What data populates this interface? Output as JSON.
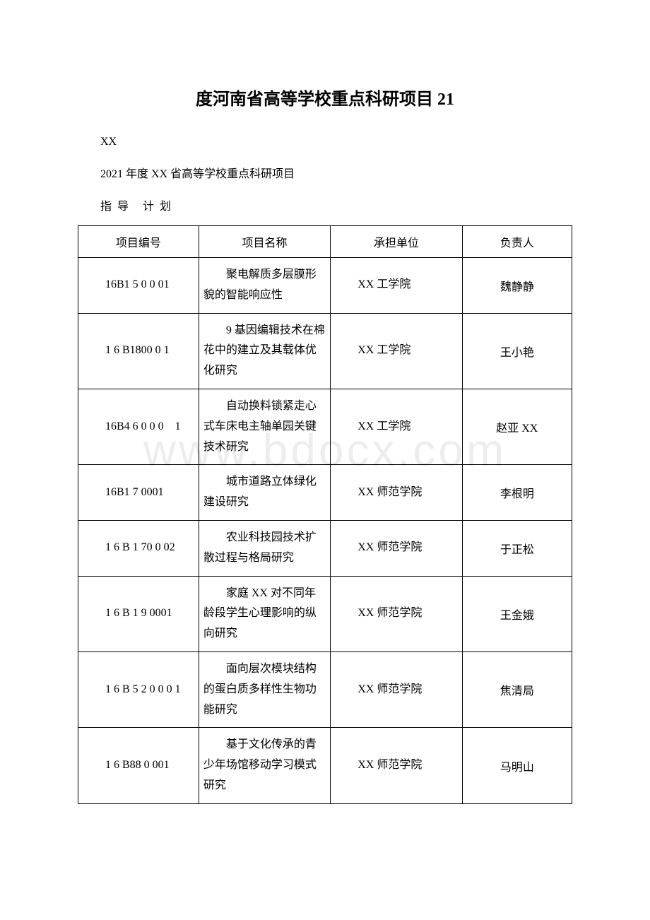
{
  "title": "度河南省高等学校重点科研项目 21",
  "preamble": {
    "line1": "XX",
    "line2": "2021 年度 XX 省高等学校重点科研项目",
    "line3": "指 导　计 划"
  },
  "watermark": "www.bdocx.com",
  "table": {
    "columns": [
      "项目编号",
      "项目名称",
      "承担单位",
      "负责人"
    ],
    "rows": [
      {
        "code": "16B1 5 0 0 01",
        "name": "聚电解质多层膜形貌的智能响应性",
        "unit": "XX 工学院",
        "leader": "魏静静"
      },
      {
        "code": "1 6 B1800 0 1",
        "name": "9 基因编辑技术在棉花中的建立及其载体优化研究",
        "unit": "XX 工学院",
        "leader": "王小艳"
      },
      {
        "code": "16B4 6 0 0 0　1",
        "name": "自动换料锁紧走心式车床电主轴单园关键技术研究",
        "unit": "XX 工学院",
        "leader": "赵亚 XX"
      },
      {
        "code": "16B1 7 0001",
        "name": "城市道路立体绿化建设研究",
        "unit": "XX 师范学院",
        "leader": "李根明"
      },
      {
        "code": "1 6 B 1 70 0 02",
        "name": "农业科技园技术扩散过程与格局研究",
        "unit": "XX 师范学院",
        "leader": "于正松"
      },
      {
        "code": "1 6 B 1 9 0001",
        "name": "家庭 XX 对不同年龄段学生心理影响的纵向研究",
        "unit": "XX 师范学院",
        "leader": "王金娥"
      },
      {
        "code": "1 6 B 5 2 0 0 0 1",
        "name": "面向层次模块结构的蛋白质多样性生物功能研究",
        "unit": "XX 师范学院",
        "leader": "焦清局"
      },
      {
        "code": "1 6 B88 0 001",
        "name": "基于文化传承的青少年场馆移动学习模式研究",
        "unit": "XX 师范学院",
        "leader": "马明山"
      }
    ]
  },
  "colors": {
    "text": "#000000",
    "background": "#ffffff",
    "border": "#000000",
    "watermark": "rgba(0,0,0,0.07)"
  }
}
